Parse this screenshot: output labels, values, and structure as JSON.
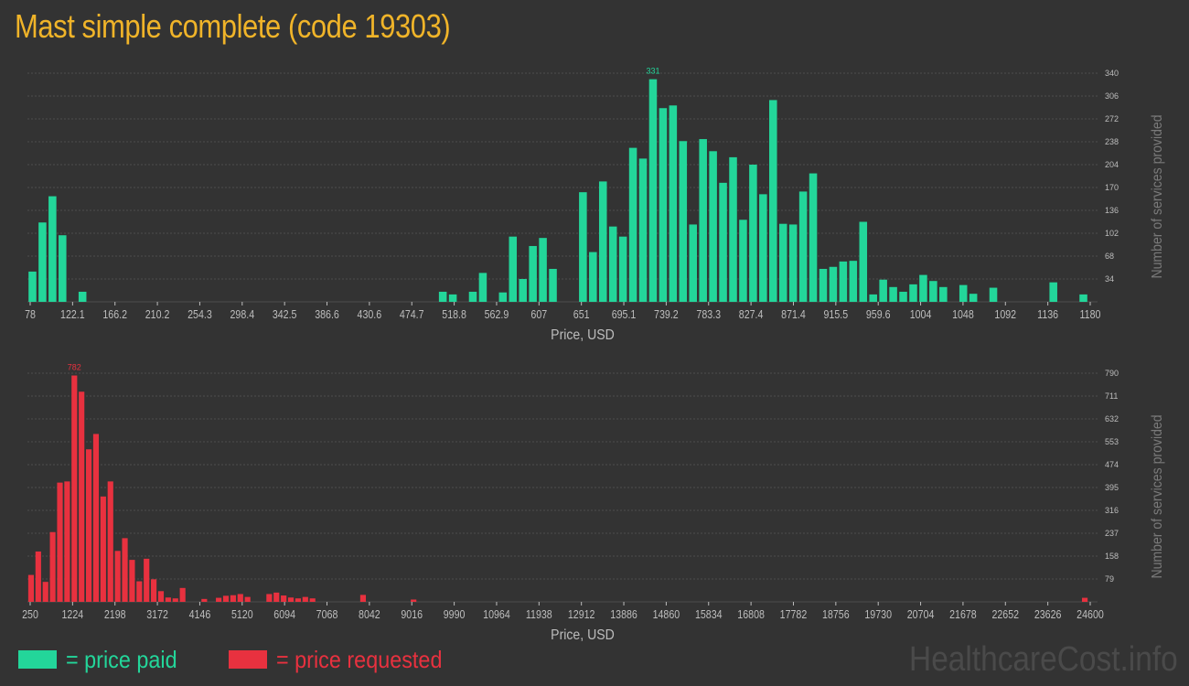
{
  "title": "Mast simple complete (code 19303)",
  "legend": {
    "paid_label": "= price paid",
    "requested_label": "= price requested"
  },
  "watermark": "HealthcareCost.info",
  "colors": {
    "background": "#333333",
    "title": "#f0b429",
    "paid": "#23d69a",
    "requested": "#e8313f",
    "grid": "#4d4d4d",
    "axis_text": "#bdbdbd",
    "ylabel_text": "#7a7a7a"
  },
  "chart_data": [
    {
      "type": "bar",
      "series_name": "price paid",
      "xlabel": "Price, USD",
      "ylabel": "Number of services provided",
      "ylim": [
        0,
        340
      ],
      "y_ticks": [
        34,
        68,
        102,
        136,
        170,
        204,
        238,
        272,
        306,
        340
      ],
      "x_tick_labels": [
        "78",
        "122.1",
        "166.2",
        "210.2",
        "254.3",
        "298.4",
        "342.5",
        "386.6",
        "430.6",
        "474.7",
        "518.8",
        "562.9",
        "607",
        "651",
        "695.1",
        "739.2",
        "783.3",
        "827.4",
        "871.4",
        "915.5",
        "959.6",
        "1004",
        "1048",
        "1092",
        "1136",
        "1180"
      ],
      "peak_label": "331",
      "values": [
        45,
        118,
        157,
        99,
        0,
        15,
        0,
        0,
        0,
        0,
        0,
        0,
        0,
        0,
        0,
        0,
        0,
        0,
        0,
        0,
        0,
        0,
        0,
        0,
        0,
        0,
        0,
        0,
        0,
        0,
        0,
        0,
        0,
        0,
        0,
        0,
        0,
        0,
        0,
        0,
        0,
        15,
        11,
        0,
        15,
        43,
        0,
        14,
        97,
        34,
        83,
        95,
        49,
        0,
        0,
        163,
        74,
        179,
        112,
        97,
        229,
        213,
        331,
        288,
        292,
        239,
        115,
        242,
        224,
        177,
        215,
        122,
        204,
        160,
        300,
        116,
        115,
        164,
        191,
        49,
        52,
        60,
        61,
        119,
        11,
        33,
        22,
        15,
        26,
        40,
        31,
        22,
        0,
        25,
        12,
        0,
        21,
        0,
        0,
        0,
        0,
        0,
        29,
        0,
        0,
        11
      ]
    },
    {
      "type": "bar",
      "series_name": "price requested",
      "xlabel": "Price, USD",
      "ylabel": "Number of services provided",
      "ylim": [
        0,
        790
      ],
      "y_ticks": [
        79,
        158,
        237,
        316,
        395,
        474,
        553,
        632,
        711,
        790
      ],
      "x_tick_labels": [
        "250",
        "1224",
        "2198",
        "3172",
        "4146",
        "5120",
        "6094",
        "7068",
        "8042",
        "9016",
        "9990",
        "10964",
        "11938",
        "12912",
        "13886",
        "14860",
        "15834",
        "16808",
        "17782",
        "18756",
        "19730",
        "20704",
        "21678",
        "22652",
        "23626",
        "24600"
      ],
      "peak_label": "782",
      "values": [
        93,
        174,
        69,
        241,
        412,
        416,
        782,
        726,
        527,
        580,
        364,
        416,
        176,
        220,
        145,
        71,
        149,
        78,
        37,
        15,
        12,
        48,
        0,
        0,
        10,
        0,
        14,
        21,
        23,
        27,
        17,
        0,
        0,
        27,
        32,
        22,
        15,
        12,
        17,
        12,
        0,
        0,
        0,
        0,
        0,
        0,
        24,
        0,
        0,
        0,
        0,
        0,
        0,
        8,
        0,
        0,
        0,
        0,
        0,
        0,
        0,
        0,
        0,
        0,
        0,
        0,
        0,
        0,
        0,
        0,
        0,
        0,
        0,
        0,
        0,
        0,
        0,
        0,
        0,
        0,
        0,
        0,
        0,
        0,
        0,
        0,
        0,
        0,
        0,
        0,
        0,
        0,
        0,
        0,
        0,
        0,
        0,
        0,
        0,
        0,
        0,
        0,
        0,
        0,
        0,
        0,
        0,
        0,
        0,
        0,
        0,
        0,
        0,
        0,
        0,
        0,
        0,
        0,
        0,
        0,
        0,
        0,
        0,
        0,
        0,
        0,
        0,
        0,
        0,
        0,
        0,
        0,
        0,
        0,
        0,
        0,
        0,
        0,
        0,
        0,
        0,
        0,
        0,
        0,
        0,
        0,
        14
      ]
    }
  ]
}
